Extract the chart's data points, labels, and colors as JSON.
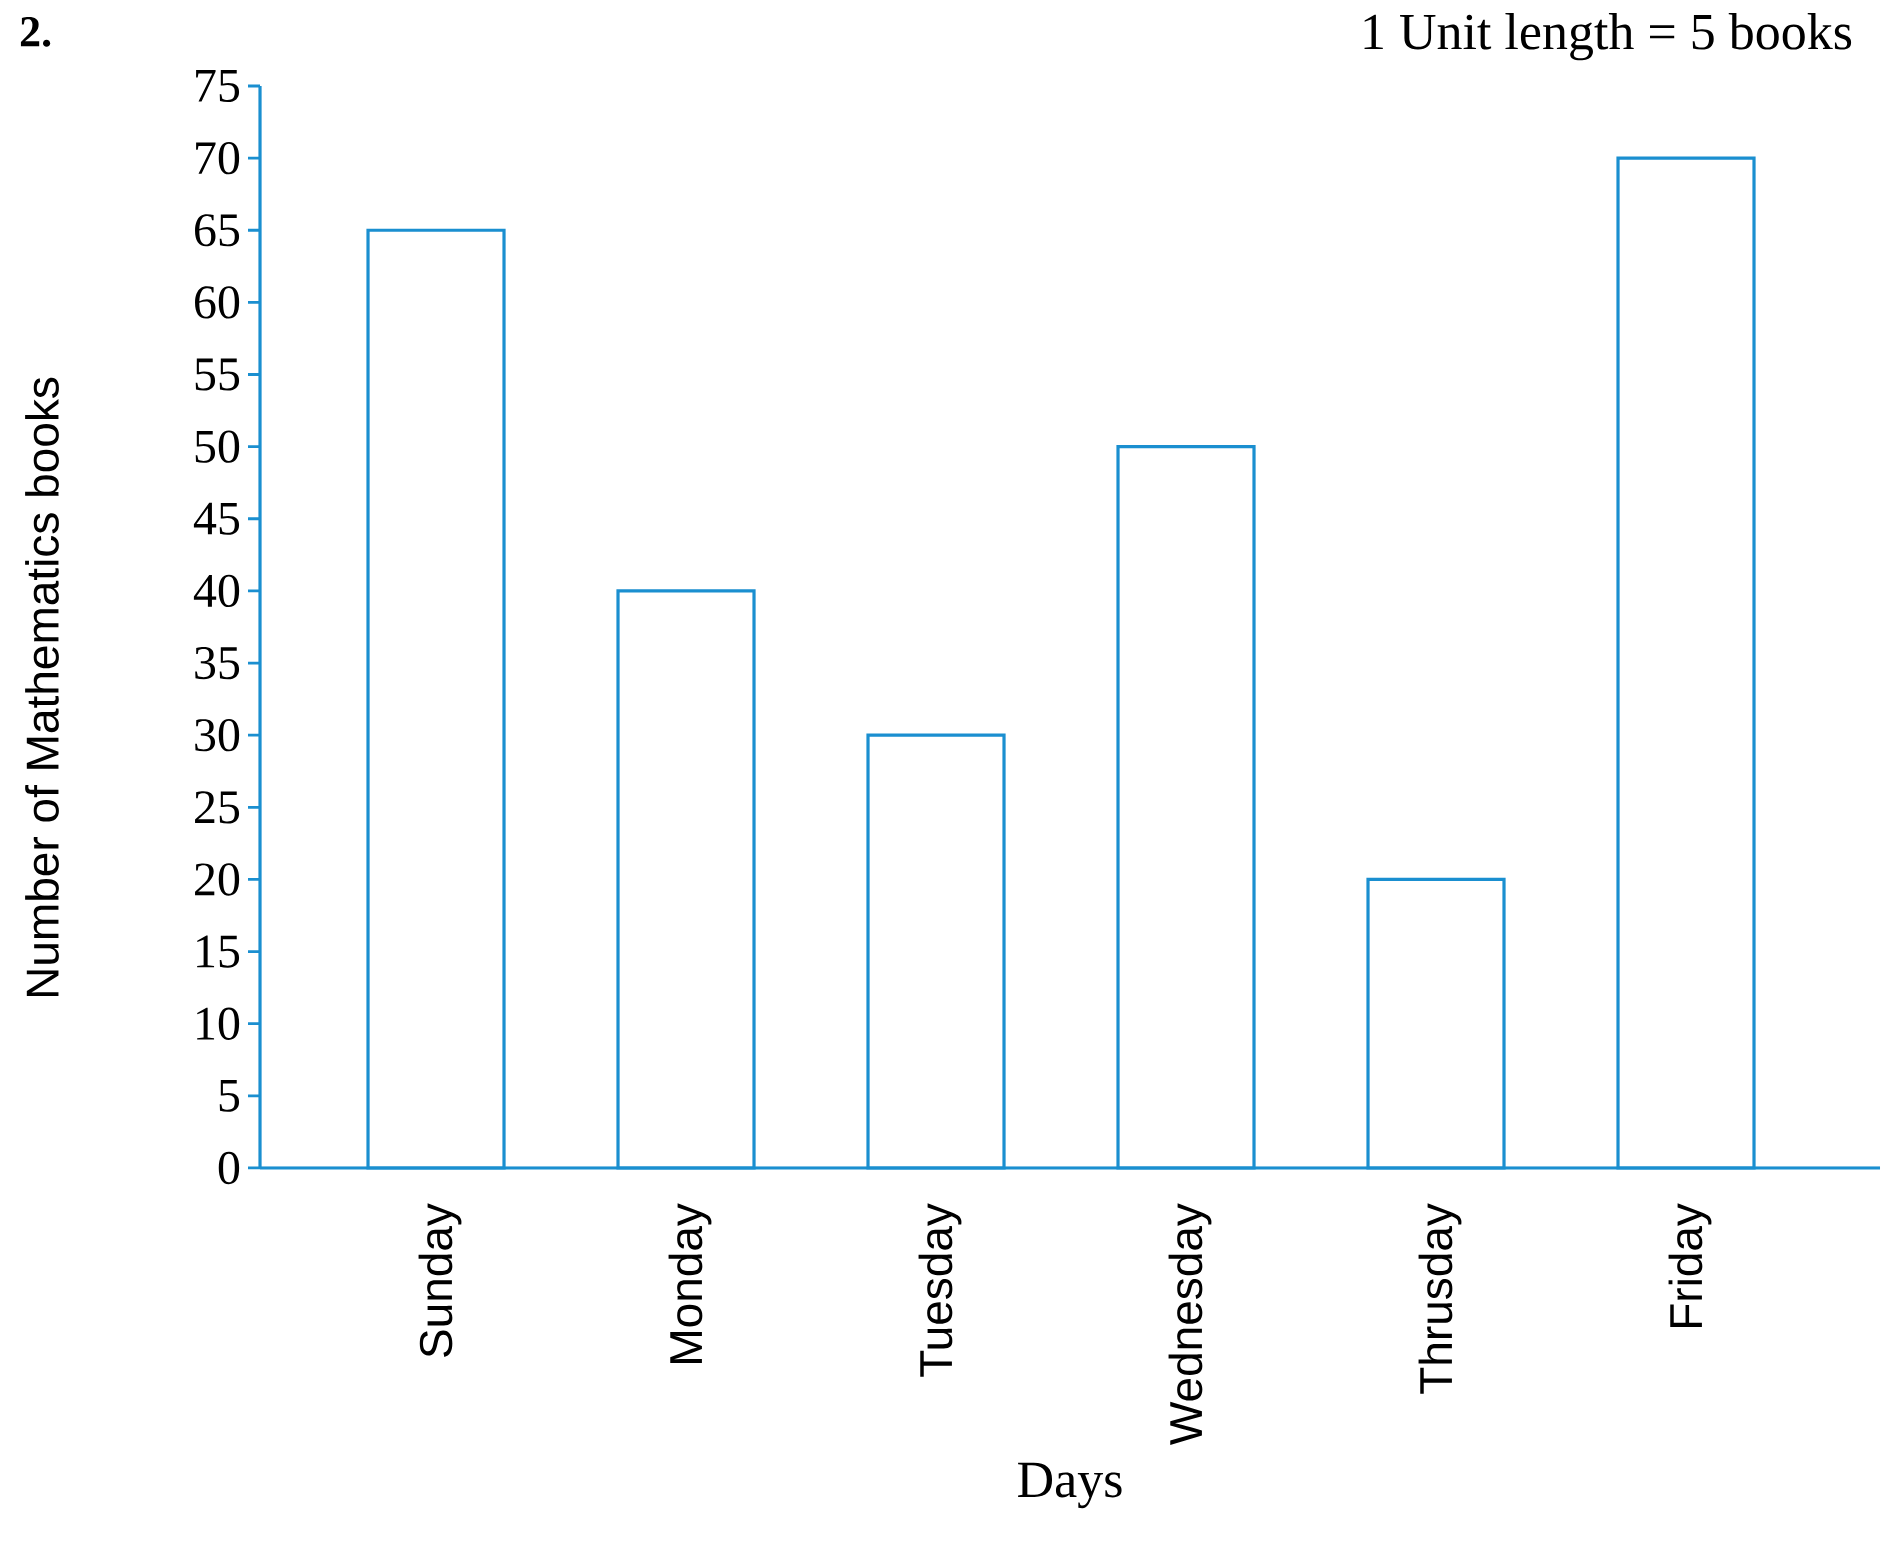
{
  "chart_data": {
    "type": "bar",
    "xlabel": "Days",
    "ylabel": "Number of Mathematics books",
    "categories": [
      "Sunday",
      "Monday",
      "Tuesday",
      "Wednesday",
      "Thrusday",
      "Friday"
    ],
    "values": [
      65,
      40,
      30,
      50,
      20,
      70
    ],
    "color": "#1a8fd0",
    "ylim": [
      0,
      75
    ],
    "yticks": [
      0,
      5,
      10,
      15,
      20,
      25,
      30,
      35,
      40,
      45,
      50,
      55,
      60,
      65,
      70,
      75
    ],
    "annotations": [
      "2.",
      "1 Unit length = 5 books"
    ],
    "grid": false
  }
}
